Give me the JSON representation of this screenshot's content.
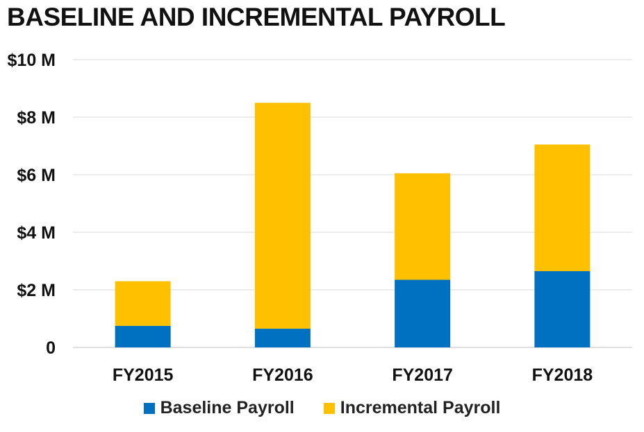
{
  "chart_data": {
    "type": "bar",
    "stacked": true,
    "title": "BASELINE AND INCREMENTAL PAYROLL",
    "categories": [
      "FY2015",
      "FY2016",
      "FY2017",
      "FY2018"
    ],
    "series": [
      {
        "name": "Baseline Payroll",
        "color": "#0070C0",
        "values": [
          0.75,
          0.65,
          2.35,
          2.65
        ]
      },
      {
        "name": "Incremental Payroll",
        "color": "#FFC000",
        "values": [
          1.55,
          7.85,
          3.7,
          4.4
        ]
      }
    ],
    "ylim": [
      0,
      10
    ],
    "yticks": [
      {
        "value": 0,
        "label": "0"
      },
      {
        "value": 2,
        "label": "$2 M"
      },
      {
        "value": 4,
        "label": "$4 M"
      },
      {
        "value": 6,
        "label": "$6 M"
      },
      {
        "value": 8,
        "label": "$8 M"
      },
      {
        "value": 10,
        "label": "$10 M"
      }
    ],
    "grid": true,
    "legend_position": "bottom"
  }
}
